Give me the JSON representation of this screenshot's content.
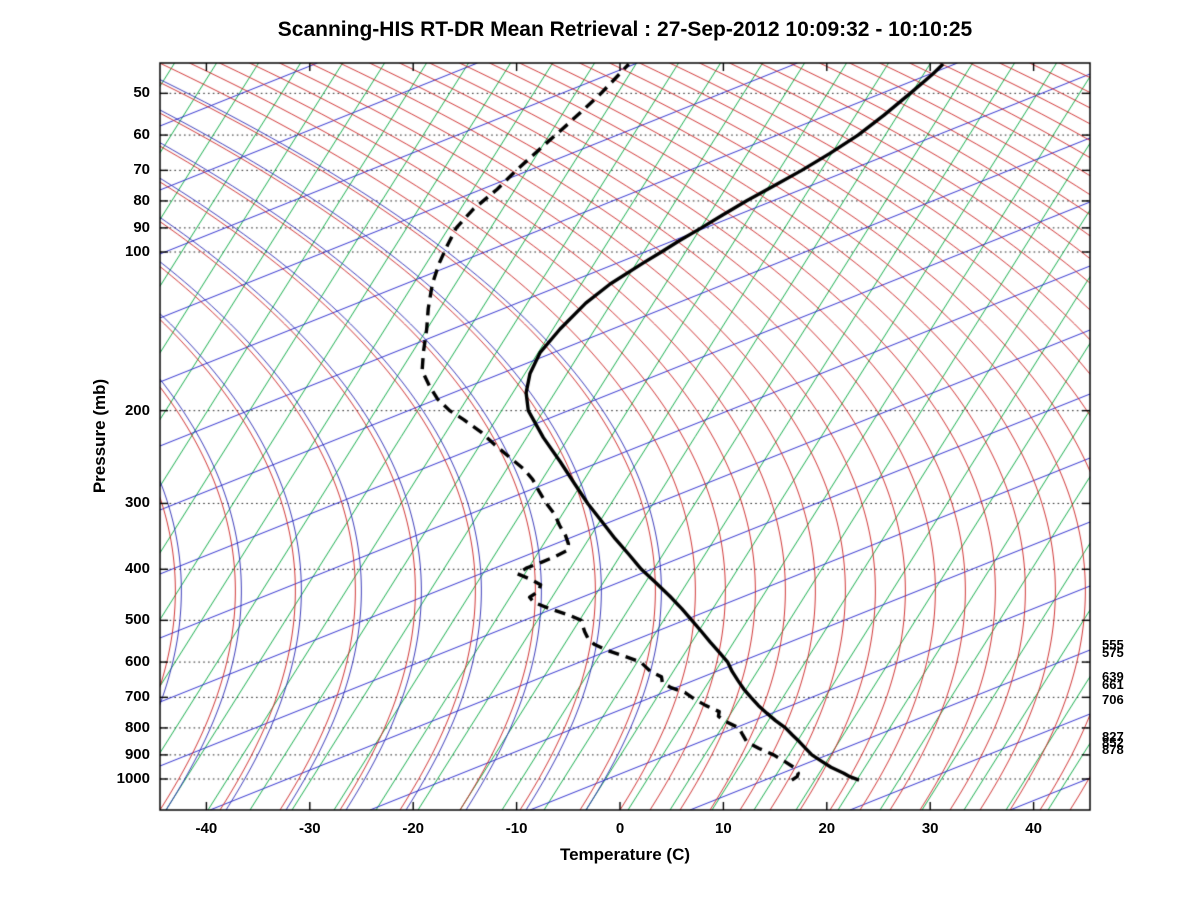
{
  "chart_data": {
    "type": "line",
    "chart_kind": "skew-t log-p atmospheric sounding",
    "title": "Scanning-HIS RT-DR Mean Retrieval : 27-Sep-2012 10:09:32 - 10:10:25",
    "xlabel": "Temperature (C)",
    "ylabel": "Pressure (mb)",
    "x_tick_labels": [
      -40,
      -30,
      -20,
      -10,
      0,
      10,
      20,
      30,
      40
    ],
    "pressure_tick_labels": [
      50,
      60,
      70,
      80,
      90,
      100,
      200,
      300,
      400,
      500,
      600,
      700,
      800,
      900,
      1000
    ],
    "pressure_axis_range": [
      44,
      1145
    ],
    "temperature_axis_range_at_bottom": [
      -44.5,
      45.5
    ],
    "grid": "dotted horizontal lines at labeled pressure levels",
    "legend_position": "none",
    "right_pressure_labels": [
      555,
      575,
      639,
      661,
      706,
      827,
      852,
      878
    ],
    "colors": {
      "temperature_line": "#000000",
      "dewpoint_line": "#000000",
      "isotherm_green": "#00a63c",
      "diagonal_blue": "#2020cc",
      "adiabat_red": "#cc2222",
      "adiabat_navy_pair": "#2a2ab4",
      "gridline": "#222222",
      "frame": "#000000"
    },
    "series": [
      {
        "name": "temperature",
        "line_style": "solid",
        "line_width": 3.4,
        "points_p_T": [
          [
            1005,
            21.3
          ],
          [
            990,
            20.2
          ],
          [
            975,
            19.4
          ],
          [
            950,
            17.8
          ],
          [
            925,
            16.5
          ],
          [
            900,
            15.2
          ],
          [
            875,
            14.2
          ],
          [
            850,
            13.2
          ],
          [
            825,
            12.1
          ],
          [
            800,
            11.0
          ],
          [
            775,
            9.6
          ],
          [
            750,
            8.3
          ],
          [
            725,
            7.0
          ],
          [
            700,
            5.8
          ],
          [
            675,
            4.6
          ],
          [
            650,
            3.5
          ],
          [
            625,
            2.4
          ],
          [
            600,
            1.4
          ],
          [
            575,
            0.0
          ],
          [
            550,
            -1.5
          ],
          [
            525,
            -3.0
          ],
          [
            500,
            -4.6
          ],
          [
            475,
            -6.3
          ],
          [
            450,
            -8.2
          ],
          [
            425,
            -10.3
          ],
          [
            400,
            -12.6
          ],
          [
            375,
            -14.7
          ],
          [
            350,
            -17.0
          ],
          [
            325,
            -19.3
          ],
          [
            300,
            -21.8
          ],
          [
            275,
            -24.3
          ],
          [
            250,
            -27.0
          ],
          [
            225,
            -30.1
          ],
          [
            200,
            -33.2
          ],
          [
            185,
            -34.5
          ],
          [
            170,
            -35.3
          ],
          [
            155,
            -35.6
          ],
          [
            140,
            -35.1
          ],
          [
            125,
            -34.2
          ],
          [
            115,
            -33.0
          ],
          [
            105,
            -31.1
          ],
          [
            100,
            -30.0
          ],
          [
            95,
            -28.9
          ],
          [
            90,
            -27.6
          ],
          [
            85,
            -26.3
          ],
          [
            80,
            -24.9
          ],
          [
            75,
            -23.2
          ],
          [
            70,
            -21.4
          ],
          [
            65,
            -19.7
          ],
          [
            60,
            -18.1
          ],
          [
            55,
            -16.8
          ],
          [
            50,
            -15.6
          ],
          [
            46,
            -14.6
          ],
          [
            44,
            -14.2
          ]
        ]
      },
      {
        "name": "dewpoint",
        "line_style": "dashed",
        "line_width": 3.4,
        "points_p_T": [
          [
            1005,
            14.8
          ],
          [
            990,
            15.1
          ],
          [
            975,
            15.0
          ],
          [
            950,
            14.2
          ],
          [
            925,
            12.9
          ],
          [
            900,
            11.5
          ],
          [
            875,
            9.7
          ],
          [
            850,
            8.1
          ],
          [
            825,
            7.3
          ],
          [
            800,
            6.5
          ],
          [
            775,
            4.6
          ],
          [
            760,
            3.8
          ],
          [
            745,
            3.6
          ],
          [
            725,
            1.9
          ],
          [
            710,
            0.8
          ],
          [
            700,
            0.1
          ],
          [
            685,
            -0.9
          ],
          [
            670,
            -2.6
          ],
          [
            655,
            -3.7
          ],
          [
            640,
            -4.1
          ],
          [
            625,
            -5.5
          ],
          [
            610,
            -6.4
          ],
          [
            600,
            -7.0
          ],
          [
            585,
            -8.9
          ],
          [
            570,
            -11.0
          ],
          [
            555,
            -12.6
          ],
          [
            540,
            -13.6
          ],
          [
            525,
            -14.3
          ],
          [
            510,
            -14.9
          ],
          [
            500,
            -15.3
          ],
          [
            488,
            -16.9
          ],
          [
            475,
            -19.1
          ],
          [
            462,
            -21.0
          ],
          [
            452,
            -21.7
          ],
          [
            440,
            -21.2
          ],
          [
            428,
            -21.4
          ],
          [
            418,
            -22.7
          ],
          [
            408,
            -24.3
          ],
          [
            398,
            -23.8
          ],
          [
            388,
            -22.7
          ],
          [
            378,
            -21.7
          ],
          [
            368,
            -20.9
          ],
          [
            358,
            -21.2
          ],
          [
            345,
            -22.0
          ],
          [
            330,
            -23.2
          ],
          [
            315,
            -24.3
          ],
          [
            300,
            -25.8
          ],
          [
            285,
            -27.2
          ],
          [
            270,
            -28.6
          ],
          [
            258,
            -30.1
          ],
          [
            245,
            -32.2
          ],
          [
            232,
            -34.4
          ],
          [
            220,
            -36.4
          ],
          [
            208,
            -38.9
          ],
          [
            200,
            -40.8
          ],
          [
            190,
            -42.7
          ],
          [
            180,
            -44.2
          ],
          [
            168,
            -45.9
          ],
          [
            155,
            -46.9
          ],
          [
            140,
            -48.0
          ],
          [
            128,
            -49.1
          ],
          [
            115,
            -50.2
          ],
          [
            105,
            -50.8
          ],
          [
            97,
            -51.1
          ],
          [
            90,
            -51.3
          ],
          [
            83,
            -50.8
          ],
          [
            76,
            -49.7
          ],
          [
            70,
            -49.0
          ],
          [
            63,
            -47.9
          ],
          [
            57,
            -46.8
          ],
          [
            50,
            -45.5
          ],
          [
            46,
            -44.9
          ],
          [
            44,
            -44.6
          ]
        ]
      }
    ],
    "background_families": [
      {
        "name": "steep-green-isopleths",
        "color": "#00a63c",
        "description": "straight lines slanting up-right ~58deg, dense"
      },
      {
        "name": "shallow-blue-isopleths",
        "color": "#2020cc",
        "description": "straight lines slanting up-right ~22deg"
      },
      {
        "name": "red-adiabat-fan",
        "color": "#cc2222",
        "description": "dense near-vertical curves lower-right bending left with height, sweeping shallow curves upper-left"
      },
      {
        "name": "navy-paired-curves",
        "color": "#2a2ab4",
        "description": "navy twins hugging left red curves giving purple look"
      }
    ]
  }
}
